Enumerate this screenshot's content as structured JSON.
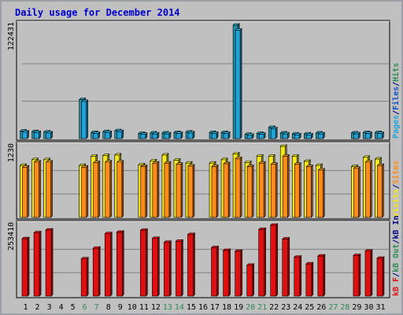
{
  "title": "Daily usage for December 2014",
  "colors": {
    "frame": "#9aa0a6",
    "background": "#c0c0c0",
    "gridline": "#808080",
    "title": "#0000cc",
    "weekend_label": "#2e8b57",
    "weekday_label": "#000080",
    "pages": "#1e90a8",
    "files": "#1452c8",
    "hits": "#1fa3d8",
    "visits": "#f5e61e",
    "sites": "#ff8c1a",
    "kb_in": "#e01010",
    "kb_out": "#e01010"
  },
  "chart_data": [
    {
      "type": "bar",
      "panel": "hits",
      "ymax_label": "122431",
      "legend": [
        {
          "text": "Pages",
          "color": "#1fa3d8"
        },
        {
          "text": "/",
          "color": "#000080"
        },
        {
          "text": "Files",
          "color": "#1452c8"
        },
        {
          "text": "/",
          "color": "#000080"
        },
        {
          "text": "Hits",
          "color": "#2e8b57"
        }
      ],
      "days": [
        "1",
        "2",
        "3",
        "4",
        "5",
        "6",
        "7",
        "8",
        "9",
        "10",
        "11",
        "12",
        "13",
        "14",
        "15",
        "16",
        "17",
        "18",
        "19",
        "20",
        "21",
        "22",
        "23",
        "24",
        "25",
        "26",
        "27",
        "28",
        "29",
        "30",
        "31"
      ],
      "weekend_days": [
        "6",
        "7",
        "13",
        "14",
        "20",
        "21",
        "27",
        "28"
      ],
      "ylim": [
        0,
        122431
      ],
      "series": [
        {
          "name": "Hits",
          "values": [
            8000,
            7500,
            7000,
            0,
            0,
            42000,
            6500,
            7500,
            8500,
            0,
            5500,
            6000,
            6000,
            6500,
            7000,
            0,
            6500,
            6500,
            122431,
            4500,
            5500,
            12000,
            6000,
            5000,
            5000,
            6000,
            0,
            0,
            6000,
            6500,
            6500
          ]
        },
        {
          "name": "Files",
          "values": [
            7000,
            6500,
            6000,
            0,
            0,
            40000,
            5500,
            6500,
            7500,
            0,
            4500,
            5000,
            5000,
            5500,
            6000,
            0,
            5500,
            5500,
            117000,
            3500,
            4500,
            10500,
            5000,
            4000,
            4000,
            5000,
            0,
            0,
            5000,
            5500,
            5500
          ]
        }
      ]
    },
    {
      "type": "bar",
      "panel": "visits",
      "ymax_label": "1230",
      "legend": [
        {
          "text": "Visits",
          "color": "#f5e61e"
        },
        {
          "text": "/",
          "color": "#000080"
        },
        {
          "text": "Sites",
          "color": "#ff8c1a"
        }
      ],
      "ylim": [
        0,
        1230
      ],
      "series": [
        {
          "name": "Visits",
          "values": [
            900,
            1000,
            1000,
            0,
            0,
            900,
            1060,
            1070,
            1080,
            0,
            910,
            980,
            1080,
            990,
            940,
            0,
            940,
            1000,
            1100,
            950,
            1060,
            1060,
            1230,
            1060,
            970,
            900,
            0,
            0,
            880,
            1040,
            1010
          ]
        },
        {
          "name": "Sites",
          "values": [
            870,
            960,
            960,
            0,
            0,
            870,
            950,
            960,
            960,
            0,
            880,
            940,
            940,
            920,
            890,
            0,
            880,
            930,
            1020,
            880,
            940,
            920,
            1060,
            920,
            880,
            820,
            0,
            0,
            850,
            960,
            900
          ]
        }
      ]
    },
    {
      "type": "bar",
      "panel": "kbytes",
      "ymax_label": "253410",
      "legend": [
        {
          "text": "kB F",
          "color": "#e01010"
        },
        {
          "text": "/",
          "color": "#000080"
        },
        {
          "text": "kB Out",
          "color": "#2e8b57"
        },
        {
          "text": "/",
          "color": "#000080"
        },
        {
          "text": "kB In",
          "color": "#000080"
        }
      ],
      "ylim": [
        0,
        253410
      ],
      "series": [
        {
          "name": "kB F",
          "values": [
            205000,
            226000,
            236000,
            0,
            0,
            133000,
            171000,
            223000,
            228000,
            0,
            235000,
            206000,
            192000,
            196000,
            220000,
            0,
            173000,
            163000,
            160000,
            110000,
            238000,
            253410,
            204000,
            139000,
            115000,
            143000,
            0,
            0,
            145000,
            161000,
            135000
          ]
        }
      ]
    }
  ]
}
